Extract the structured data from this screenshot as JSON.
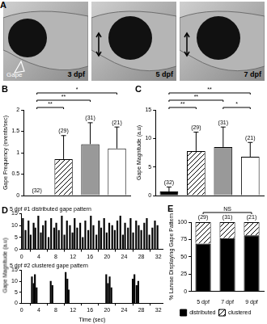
{
  "panel_a": {
    "panel": "A",
    "labels": [
      "3 dpf",
      "5 dpf",
      "7 dpf"
    ],
    "annotation": "Gape"
  },
  "chart_data": [
    {
      "panel": "B",
      "type": "bar",
      "categories": [
        null,
        null,
        null,
        null
      ],
      "values": [
        0,
        0.85,
        1.2,
        1.1
      ],
      "errors": [
        0,
        0.55,
        0.5,
        0.5
      ],
      "colors": [
        "#000000",
        "#ffffff",
        "#999999",
        "#ffffff"
      ],
      "n_labels": [
        "(32)",
        "(29)",
        "(31)",
        "(21)"
      ],
      "significance": [
        {
          "from": 0,
          "to": 1,
          "label": "**"
        },
        {
          "from": 0,
          "to": 2,
          "label": "**"
        },
        {
          "from": 0,
          "to": 3,
          "label": "*"
        }
      ],
      "y_label": "Gape Frequency (events/sec)",
      "ylim": [
        0,
        2
      ],
      "yticks": [
        0,
        0.5,
        1,
        1.5,
        2
      ],
      "grid": false,
      "tick_labels": "y"
    },
    {
      "panel": "C",
      "type": "bar",
      "categories": [
        null,
        null,
        null,
        null
      ],
      "values": [
        0.7,
        7.8,
        8.5,
        6.8
      ],
      "errors": [
        0.8,
        3.3,
        3.5,
        2.5
      ],
      "colors": [
        "#000000",
        "#ffffff",
        "#999999",
        "#ffffff"
      ],
      "n_labels": [
        "(32)",
        "(29)",
        "(31)",
        "(21)"
      ],
      "significance": [
        {
          "from": 0,
          "to": 1,
          "label": "**"
        },
        {
          "from": 0,
          "to": 2,
          "label": "**"
        },
        {
          "from": 0,
          "to": 3,
          "label": "**"
        },
        {
          "from": 2,
          "to": 3,
          "label": "*"
        }
      ],
      "y_label": "Gape Magnitude (a.u)",
      "ylim": [
        0,
        15
      ],
      "yticks": [
        0,
        5,
        10,
        15
      ],
      "grid": false,
      "tick_labels": "y"
    },
    {
      "panel": "D",
      "type": "bar",
      "title": "5 dpf #1 distributed gape pattern",
      "x": [
        0.3,
        0.9,
        1.6,
        2.1,
        2.8,
        3.2,
        3.9,
        4.5,
        5.0,
        5.6,
        6.3,
        6.9,
        7.6,
        8.1,
        8.7,
        9.4,
        10.0,
        10.6,
        11.3,
        11.9,
        12.4,
        13.0,
        13.7,
        14.3,
        14.9,
        15.6,
        16.2,
        16.8,
        17.5,
        18.1,
        18.6,
        19.3,
        19.9,
        20.5,
        21.2,
        21.8,
        22.4,
        23.1,
        23.7,
        24.2,
        24.9,
        25.5,
        26.1,
        26.8,
        27.4,
        28.0,
        28.7,
        29.3,
        29.9,
        30.6,
        31.2,
        31.8
      ],
      "values": [
        13,
        8,
        12,
        6,
        11,
        9,
        14,
        7,
        10,
        12,
        5,
        13,
        9,
        11,
        8,
        14,
        6,
        12,
        10,
        7,
        13,
        9,
        11,
        5,
        12,
        8,
        14,
        10,
        6,
        12,
        9,
        13,
        7,
        11,
        10,
        8,
        12,
        14,
        6,
        11,
        9,
        13,
        7,
        12,
        10,
        8,
        11,
        13,
        6,
        9,
        12,
        10
      ],
      "color": "#000000",
      "y_label": "Gape Magnitude (a.u)",
      "xlim": [
        0,
        33
      ],
      "xticks": [
        0,
        4,
        8,
        12,
        16,
        20,
        24,
        28,
        32
      ],
      "ylim": [
        0,
        15
      ],
      "yticks": [
        0,
        5,
        10,
        15
      ],
      "grid": false
    },
    {
      "type": "bar",
      "title": "5 dpf #2 clustered gape pattern",
      "x": [
        2.4,
        2.8,
        3.1,
        3.5,
        6.8,
        7.2,
        10.3,
        10.7,
        11.0,
        19.8,
        20.2,
        20.6,
        21.0,
        26.0,
        26.4,
        26.9,
        27.3
      ],
      "values": [
        12,
        9,
        13,
        7,
        10,
        8,
        14,
        11,
        6,
        13,
        9,
        12,
        7,
        11,
        13,
        8,
        10
      ],
      "color": "#000000",
      "x_label": "Time (sec)",
      "xlim": [
        0,
        33
      ],
      "xticks": [
        0,
        4,
        8,
        12,
        16,
        20,
        24,
        28,
        32
      ],
      "ylim": [
        0,
        15
      ],
      "yticks": [
        0,
        5,
        10,
        15
      ],
      "grid": false
    },
    {
      "panel": "E",
      "type": "bar",
      "stacked": true,
      "categories": [
        "5 dpf",
        "7 dpf",
        "9 dpf"
      ],
      "series": [
        {
          "name": "distributed",
          "color": "#000000",
          "values": [
            69,
            77,
            81
          ]
        },
        {
          "name": "clustered",
          "color": "#ffffff",
          "values": [
            31,
            23,
            19
          ]
        }
      ],
      "n_labels": [
        "(29)",
        "(31)",
        "(21)"
      ],
      "significance": [
        {
          "from": 0,
          "to": 2,
          "label": "NS"
        }
      ],
      "y_label": "% Larvae Displaying Gape Pattern",
      "ylim": [
        0,
        100
      ],
      "yticks": [
        0,
        25,
        50,
        75,
        100
      ],
      "legend": "bottom",
      "grid": false
    }
  ]
}
